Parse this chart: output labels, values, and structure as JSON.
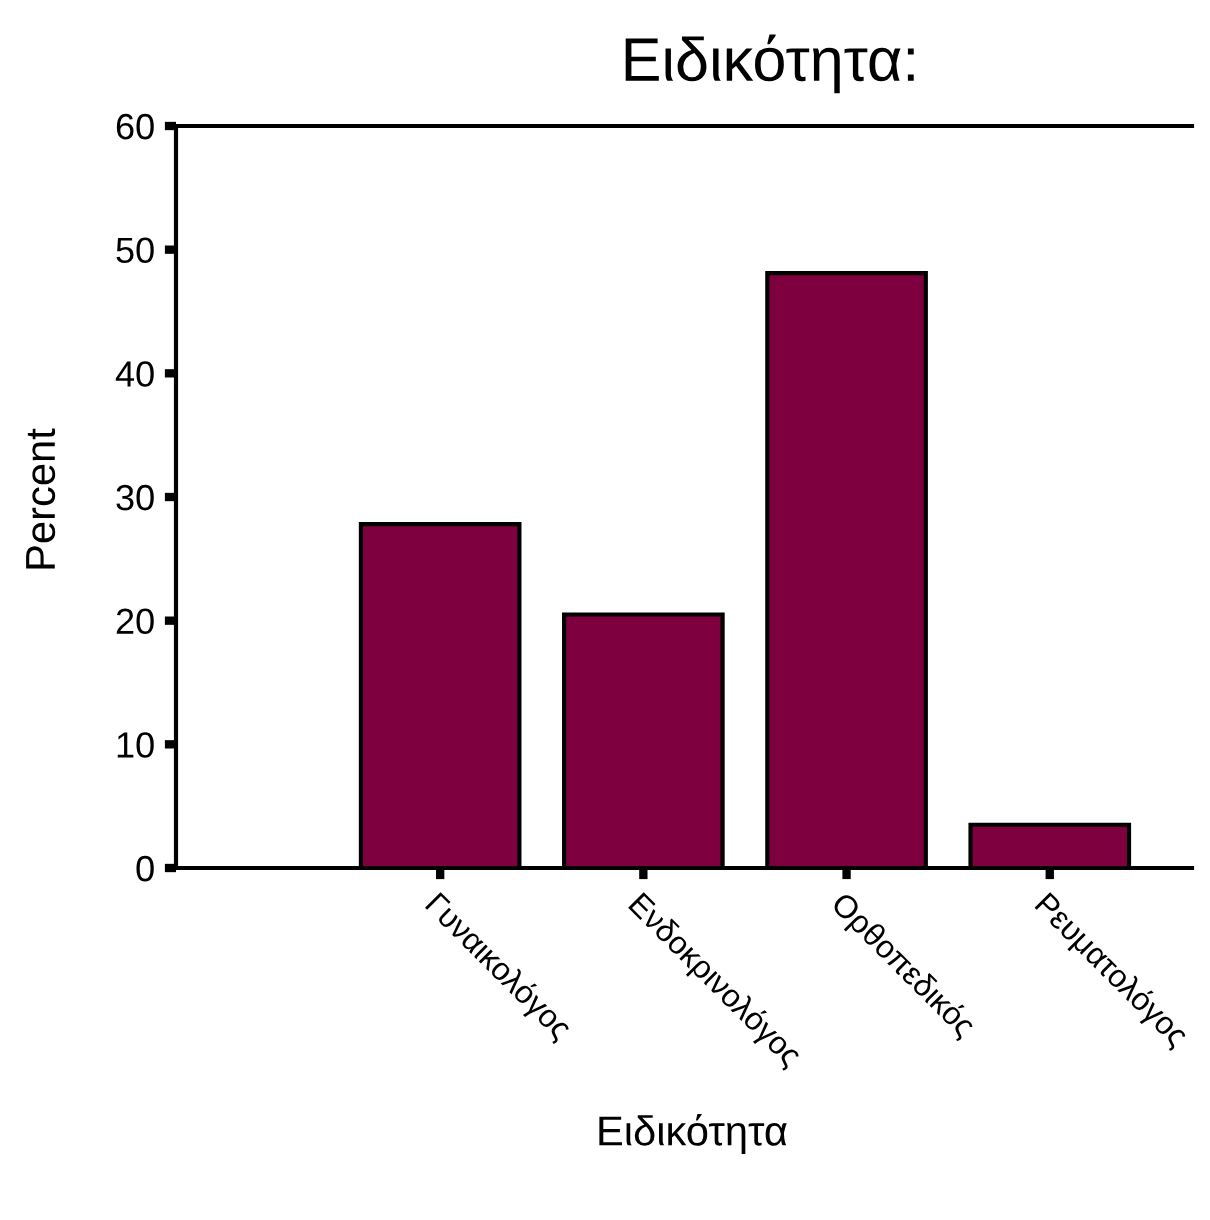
{
  "chart_data": {
    "type": "bar",
    "title": "Ειδικότητα:",
    "xlabel": "Ειδικότητα",
    "ylabel": "Percent",
    "categories": [
      "Γυναικολόγος",
      "Ενδοκρινολόγος",
      "Ορθοπεδικός",
      "Ρευματολόγος"
    ],
    "values": [
      27.8,
      20.5,
      48.1,
      3.5
    ],
    "color": "#7f003f",
    "ylim": [
      0,
      60
    ],
    "yticks": [
      0,
      10,
      20,
      30,
      40,
      50,
      60
    ],
    "grid": false,
    "legend": false
  }
}
